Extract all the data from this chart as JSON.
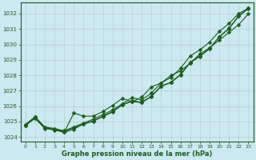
{
  "xlabel": "Graphe pression niveau de la mer (hPa)",
  "ylabel": "",
  "background_color": "#cce8f0",
  "grid_color": "#b0cccc",
  "line_color": "#1e5c1e",
  "xlim": [
    -0.5,
    23.5
  ],
  "ylim": [
    1023.7,
    1032.7
  ],
  "yticks": [
    1024,
    1025,
    1026,
    1027,
    1028,
    1029,
    1030,
    1031,
    1032
  ],
  "xticks": [
    0,
    1,
    2,
    3,
    4,
    5,
    6,
    7,
    8,
    9,
    10,
    11,
    12,
    13,
    14,
    15,
    16,
    17,
    18,
    19,
    20,
    21,
    22,
    23
  ],
  "series": [
    {
      "x": [
        0,
        1,
        2,
        3,
        4,
        5,
        6,
        7,
        8,
        9,
        10,
        11,
        12,
        13,
        14,
        15,
        16,
        17,
        18,
        19,
        20,
        21,
        22,
        23
      ],
      "y": [
        1024.8,
        1025.3,
        1024.6,
        1024.5,
        1024.3,
        1024.5,
        1024.85,
        1025.05,
        1025.35,
        1025.65,
        1026.1,
        1026.35,
        1026.25,
        1026.65,
        1027.3,
        1027.55,
        1028.05,
        1028.85,
        1029.25,
        1029.75,
        1030.5,
        1031.05,
        1031.85,
        1032.35
      ],
      "marker": "D",
      "markersize": 2.5,
      "linewidth": 0.8
    },
    {
      "x": [
        0,
        1,
        2,
        3,
        4,
        5,
        6,
        7,
        8,
        9,
        10,
        11,
        12,
        13,
        14,
        15,
        16,
        17,
        18,
        19,
        20,
        21,
        22,
        23
      ],
      "y": [
        1024.8,
        1025.3,
        1024.65,
        1024.55,
        1024.4,
        1024.65,
        1024.9,
        1025.15,
        1025.45,
        1025.75,
        1026.15,
        1026.55,
        1026.4,
        1026.85,
        1027.5,
        1027.85,
        1028.45,
        1029.25,
        1029.65,
        1030.15,
        1030.85,
        1031.35,
        1032.0,
        1032.35
      ],
      "marker": "D",
      "markersize": 2.5,
      "linewidth": 0.8
    },
    {
      "x": [
        0,
        1,
        2,
        3,
        4,
        5,
        6,
        7,
        8,
        9,
        10,
        11,
        12,
        13,
        14,
        15,
        16,
        17,
        18,
        19,
        20,
        21,
        22,
        23
      ],
      "y": [
        1024.75,
        1025.25,
        1024.6,
        1024.5,
        1024.35,
        1024.6,
        1024.82,
        1025.02,
        1025.32,
        1025.62,
        1026.08,
        1026.3,
        1026.22,
        1026.62,
        1027.28,
        1027.52,
        1028.02,
        1028.82,
        1029.22,
        1029.72,
        1030.48,
        1031.02,
        1031.82,
        1032.32
      ],
      "marker": "D",
      "markersize": 2.5,
      "linewidth": 0.8
    },
    {
      "x": [
        0,
        1,
        2,
        3,
        4,
        5,
        6,
        7,
        8,
        9,
        10,
        11,
        12,
        13,
        14,
        15,
        16,
        17,
        18,
        19,
        20,
        21,
        22,
        23
      ],
      "y": [
        1024.75,
        1025.2,
        1024.55,
        1024.45,
        1024.3,
        1025.55,
        1025.35,
        1025.35,
        1025.65,
        1026.05,
        1026.5,
        1026.28,
        1026.58,
        1027.25,
        1027.5,
        1027.98,
        1028.28,
        1028.78,
        1029.38,
        1029.78,
        1030.28,
        1030.78,
        1031.28,
        1031.98
      ],
      "marker": "D",
      "markersize": 2.5,
      "linewidth": 0.8
    }
  ],
  "tick_fontsize": 5,
  "xlabel_fontsize": 6,
  "xlabel_fontweight": "bold"
}
